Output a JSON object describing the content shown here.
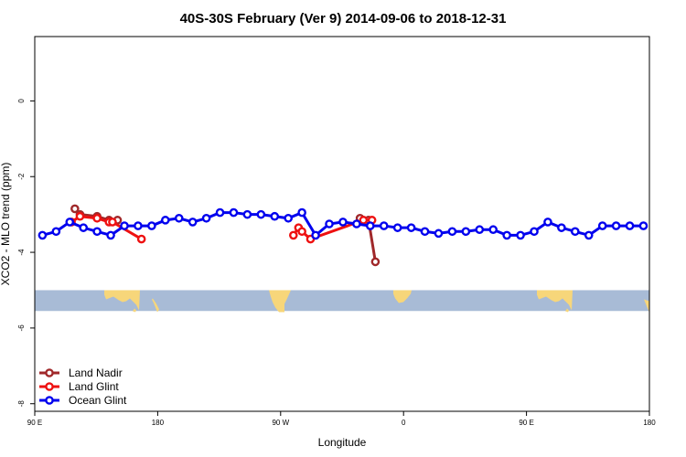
{
  "chart_data": {
    "type": "line",
    "title": "40S-30S February (Ver 9)   2014-09-06 to 2018-12-31",
    "xlabel": "Longitude",
    "ylabel": "XCO2 - MLO trend (ppm)",
    "xlim": [
      90,
      450
    ],
    "ylim": [
      -8.2,
      1.7
    ],
    "x_ticks": [
      {
        "value": 90,
        "label": "90 E"
      },
      {
        "value": 162,
        "label": "180"
      },
      {
        "value": 234,
        "label": "90 W"
      },
      {
        "value": 306,
        "label": "0"
      },
      {
        "value": 378,
        "label": "90 E"
      },
      {
        "value": 450,
        "label": "180"
      }
    ],
    "y_ticks": [
      {
        "value": 0,
        "label": "0"
      },
      {
        "value": -2,
        "label": "-2"
      },
      {
        "value": -4,
        "label": "-4"
      },
      {
        "value": -6,
        "label": "-6"
      },
      {
        "value": -8,
        "label": "-8"
      }
    ],
    "map_strip": {
      "y_top": -5.0,
      "y_bottom": -5.55,
      "ocean_color": "#a8bbd6",
      "land_color": "#f7d67a"
    },
    "legend": {
      "position": "bottom-left"
    },
    "series": [
      {
        "name": "Land Nadir",
        "color": "#a0282a",
        "x": [
          113.5,
          116.5,
          126.5,
          133.5,
          138.5,
          280.5,
          285.5,
          289.5
        ],
        "y": [
          -2.85,
          -3.0,
          -3.05,
          -3.15,
          -3.15,
          -3.1,
          -3.15,
          -4.25
        ]
      },
      {
        "name": "Land Glint",
        "color": "#ee1111",
        "x": [
          111.5,
          116.5,
          126.5,
          133.5,
          135.5,
          152.5,
          241.5,
          244.5,
          246.5,
          251.5,
          282.5,
          287.5
        ],
        "y": [
          -3.2,
          -3.05,
          -3.1,
          -3.2,
          -3.2,
          -3.65,
          -3.55,
          -3.35,
          -3.45,
          -3.65,
          -3.15,
          -3.15
        ]
      },
      {
        "name": "Ocean Glint",
        "color": "#0000ee",
        "x": [
          94.5,
          102.5,
          110.5,
          118.5,
          126.5,
          134.5,
          142.5,
          150.5,
          158.5,
          166.5,
          174.5,
          182.5,
          190.5,
          198.5,
          206.5,
          214.5,
          222.5,
          230.5,
          238.5,
          246.5,
          254.5,
          262.5,
          270.5,
          278.5,
          286.5,
          294.5,
          302.5,
          310.5,
          318.5,
          326.5,
          334.5,
          342.5,
          350.5,
          358.5,
          366.5,
          374.5,
          382.5,
          390.5,
          398.5,
          406.5,
          414.5,
          422.5,
          430.5,
          438.5,
          446.5
        ],
        "y": [
          -3.55,
          -3.45,
          -3.2,
          -3.35,
          -3.45,
          -3.55,
          -3.3,
          -3.3,
          -3.3,
          -3.15,
          -3.1,
          -3.2,
          -3.1,
          -2.95,
          -2.95,
          -3.0,
          -3.0,
          -3.05,
          -3.1,
          -2.95,
          -3.55,
          -3.25,
          -3.2,
          -3.25,
          -3.3,
          -3.3,
          -3.35,
          -3.35,
          -3.45,
          -3.5,
          -3.45,
          -3.45,
          -3.4,
          -3.4,
          -3.55,
          -3.55,
          -3.45,
          -3.2,
          -3.35,
          -3.45,
          -3.55,
          -3.3,
          -3.3,
          -3.3,
          -3.3
        ]
      }
    ]
  }
}
